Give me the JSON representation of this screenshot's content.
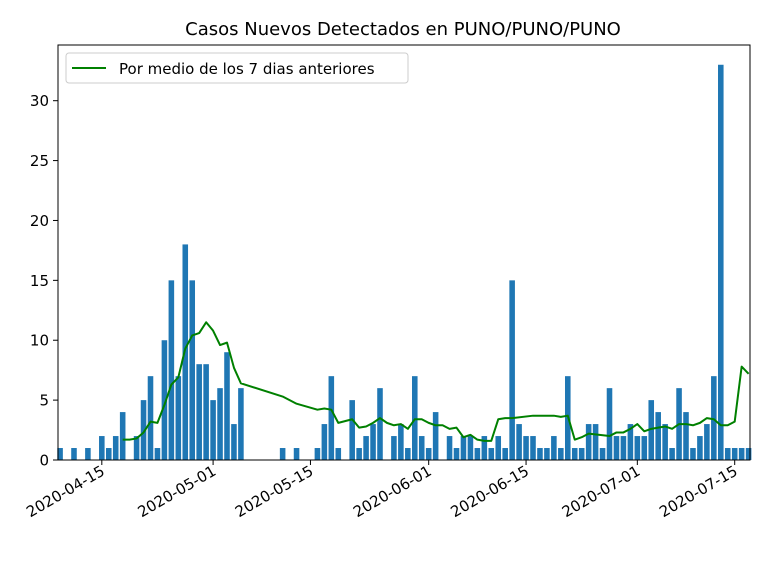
{
  "chart_data": {
    "type": "bar",
    "title": "Casos Nuevos Detectados en PUNO/PUNO/PUNO",
    "xlabel": "",
    "ylabel": "",
    "ylim": [
      0,
      34.65
    ],
    "yticks": [
      0,
      5,
      10,
      15,
      20,
      25,
      30
    ],
    "xlim": [
      "2020-04-09",
      "2020-07-17"
    ],
    "xticks": [
      "2020-04-15",
      "2020-05-01",
      "2020-05-15",
      "2020-06-01",
      "2020-06-15",
      "2020-07-01",
      "2020-07-15"
    ],
    "grid": false,
    "legend_position": "top-left",
    "bar_color": "#1f77b4",
    "line_color": "#008000",
    "series": [
      {
        "type": "bar",
        "x": [
          "2020-04-09",
          "2020-04-11",
          "2020-04-13",
          "2020-04-14",
          "2020-04-15",
          "2020-04-16",
          "2020-04-17",
          "2020-04-18",
          "2020-04-19",
          "2020-04-20",
          "2020-04-21",
          "2020-04-22",
          "2020-04-23",
          "2020-04-24",
          "2020-04-25",
          "2020-04-26",
          "2020-04-27",
          "2020-04-28",
          "2020-04-29",
          "2020-04-30",
          "2020-05-01",
          "2020-05-02",
          "2020-05-03",
          "2020-05-04",
          "2020-05-05",
          "2020-05-11",
          "2020-05-13",
          "2020-05-16",
          "2020-05-17",
          "2020-05-18",
          "2020-05-19",
          "2020-05-20",
          "2020-05-21",
          "2020-05-22",
          "2020-05-23",
          "2020-05-24",
          "2020-05-25",
          "2020-05-26",
          "2020-05-27",
          "2020-05-28",
          "2020-05-29",
          "2020-05-30",
          "2020-05-31",
          "2020-06-01",
          "2020-06-02",
          "2020-06-03",
          "2020-06-04",
          "2020-06-05",
          "2020-06-06",
          "2020-06-07",
          "2020-06-08",
          "2020-06-09",
          "2020-06-10",
          "2020-06-11",
          "2020-06-12",
          "2020-06-13",
          "2020-06-14",
          "2020-06-15",
          "2020-06-16",
          "2020-06-17",
          "2020-06-18",
          "2020-06-19",
          "2020-06-20",
          "2020-06-21",
          "2020-06-22",
          "2020-06-23",
          "2020-06-24",
          "2020-06-25",
          "2020-06-26",
          "2020-06-27",
          "2020-06-28",
          "2020-06-29",
          "2020-06-30",
          "2020-07-01",
          "2020-07-02",
          "2020-07-03",
          "2020-07-04",
          "2020-07-05",
          "2020-07-06",
          "2020-07-07",
          "2020-07-08",
          "2020-07-09",
          "2020-07-10",
          "2020-07-11",
          "2020-07-12",
          "2020-07-13",
          "2020-07-14",
          "2020-07-15",
          "2020-07-16",
          "2020-07-17"
        ],
        "values": [
          1,
          1,
          1,
          0,
          2,
          1,
          2,
          4,
          0,
          2,
          5,
          7,
          1,
          10,
          15,
          7,
          18,
          15,
          8,
          8,
          5,
          6,
          9,
          3,
          6,
          1,
          1,
          1,
          3,
          7,
          1,
          0,
          5,
          1,
          2,
          3,
          6,
          0,
          2,
          3,
          1,
          7,
          2,
          1,
          4,
          0,
          2,
          1,
          2,
          2,
          1,
          2,
          1,
          2,
          1,
          15,
          3,
          2,
          2,
          1,
          1,
          2,
          1,
          7,
          1,
          1,
          3,
          3,
          1,
          6,
          2,
          2,
          3,
          2,
          2,
          5,
          4,
          3,
          1,
          6,
          4,
          1,
          2,
          3,
          7,
          33,
          1,
          1,
          1,
          1
        ],
        "values_note": ""
      },
      {
        "type": "line",
        "name": "Por medio de los 7 dias anteriores",
        "x": [
          "2020-04-18",
          "2020-04-19",
          "2020-04-20",
          "2020-04-21",
          "2020-04-22",
          "2020-04-23",
          "2020-04-24",
          "2020-04-25",
          "2020-04-26",
          "2020-04-27",
          "2020-04-28",
          "2020-04-29",
          "2020-04-30",
          "2020-05-01",
          "2020-05-02",
          "2020-05-03",
          "2020-05-04",
          "2020-05-05",
          "2020-05-11",
          "2020-05-13",
          "2020-05-16",
          "2020-05-17",
          "2020-05-18",
          "2020-05-19",
          "2020-05-21",
          "2020-05-22",
          "2020-05-23",
          "2020-05-24",
          "2020-05-25",
          "2020-05-26",
          "2020-05-27",
          "2020-05-28",
          "2020-05-29",
          "2020-05-30",
          "2020-05-31",
          "2020-06-01",
          "2020-06-02",
          "2020-06-03",
          "2020-06-04",
          "2020-06-05",
          "2020-06-06",
          "2020-06-07",
          "2020-06-08",
          "2020-06-09",
          "2020-06-10",
          "2020-06-11",
          "2020-06-12",
          "2020-06-13",
          "2020-06-16",
          "2020-06-19",
          "2020-06-20",
          "2020-06-21",
          "2020-06-22",
          "2020-06-23",
          "2020-06-24",
          "2020-06-27",
          "2020-06-28",
          "2020-06-29",
          "2020-06-30",
          "2020-07-01",
          "2020-07-02",
          "2020-07-03",
          "2020-07-04",
          "2020-07-05",
          "2020-07-06",
          "2020-07-07",
          "2020-07-08",
          "2020-07-09",
          "2020-07-10",
          "2020-07-11",
          "2020-07-12",
          "2020-07-13",
          "2020-07-14",
          "2020-07-15",
          "2020-07-16",
          "2020-07-17"
        ],
        "values": [
          1.7,
          1.7,
          1.8,
          2.3,
          3.2,
          3.1,
          4.6,
          6.3,
          6.9,
          9.3,
          10.4,
          10.6,
          11.5,
          10.8,
          9.6,
          9.8,
          7.7,
          6.4,
          5.3,
          4.7,
          4.2,
          4.3,
          4.2,
          3.1,
          3.4,
          2.7,
          2.8,
          3.1,
          3.5,
          3.1,
          2.9,
          3.0,
          2.6,
          3.4,
          3.4,
          3.1,
          2.9,
          2.9,
          2.6,
          2.7,
          1.9,
          2.1,
          1.7,
          1.6,
          1.6,
          3.4,
          3.5,
          3.5,
          3.7,
          3.7,
          3.6,
          3.7,
          1.7,
          1.9,
          2.2,
          2.0,
          2.3,
          2.3,
          2.6,
          3.0,
          2.4,
          2.6,
          2.7,
          2.8,
          2.6,
          3.0,
          3.0,
          2.9,
          3.1,
          3.5,
          3.4,
          2.9,
          2.9,
          3.2,
          7.8,
          7.2
        ]
      }
    ]
  }
}
